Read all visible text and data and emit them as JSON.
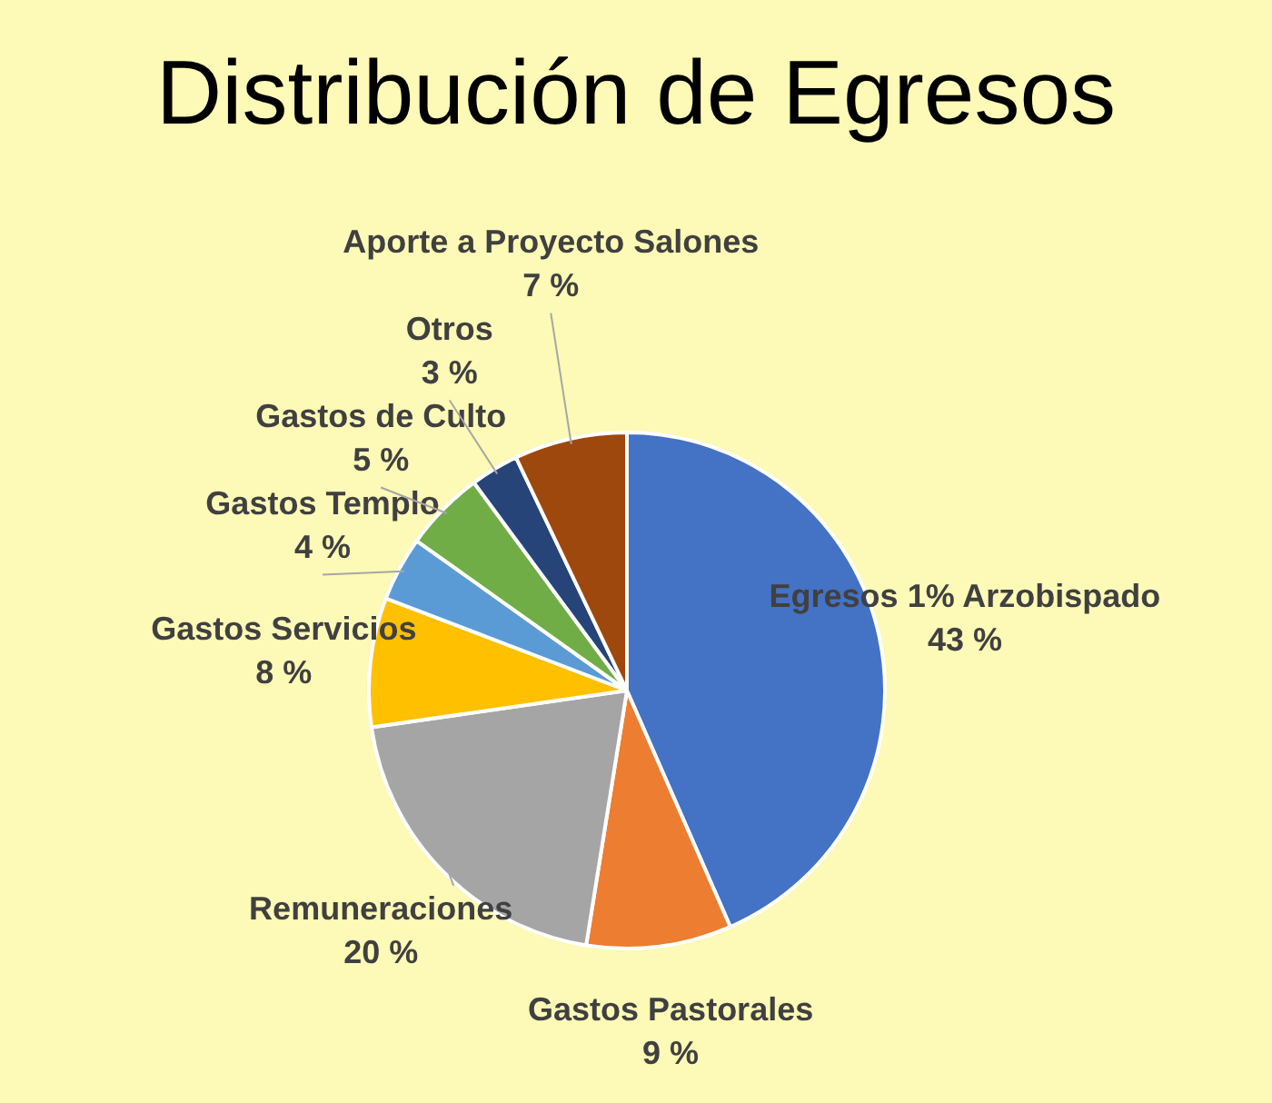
{
  "chart_data": {
    "type": "pie",
    "title": "Distribución de Egresos",
    "categories": [
      "Egresos 1% Arzobispado",
      "Gastos Pastorales",
      "Remuneraciones",
      "Gastos Servicios",
      "Gastos Templo",
      "Gastos de Culto",
      "Otros",
      "Aporte a Proyecto Salones"
    ],
    "values": [
      43,
      9,
      20,
      8,
      4,
      5,
      3,
      7
    ],
    "value_labels": [
      "43 %",
      "9 %",
      "20 %",
      "8 %",
      "4 %",
      "5 %",
      "3 %",
      "7 %"
    ],
    "colors": [
      "#4472c4",
      "#ed7d31",
      "#a5a5a5",
      "#ffc000",
      "#5b9bd5",
      "#70ad47",
      "#264478",
      "#9e480e"
    ],
    "legend": false
  }
}
